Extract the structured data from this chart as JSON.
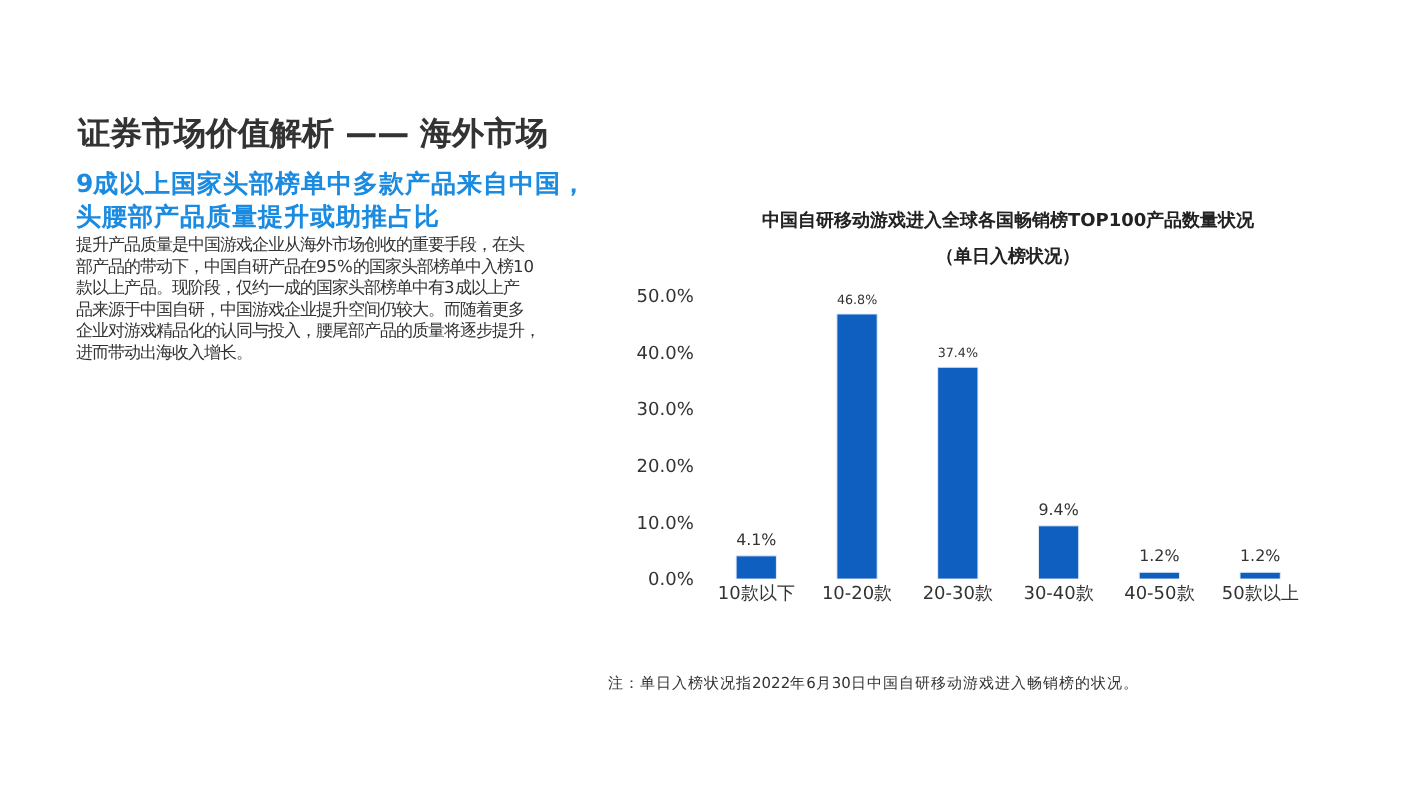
{
  "chart_data": {
    "type": "bar",
    "title": "中国自研移动游戏进入全球各国畅销榜TOP100产品数量状况",
    "subtitle": "（单日入榜状况）",
    "categories": [
      "10款以下",
      "10-20款",
      "20-30款",
      "30-40款",
      "40-50款",
      "50款以上"
    ],
    "values": [
      4.1,
      46.8,
      37.4,
      9.4,
      1.2,
      1.2
    ],
    "value_labels": [
      "4.1%",
      "46.8%",
      "37.4%",
      "9.4%",
      "1.2%",
      "1.2%"
    ],
    "color": "#0f5fc0",
    "ylim": [
      0,
      50
    ],
    "yticks": [
      {
        "value": 0,
        "label": "0.0%"
      },
      {
        "value": 10,
        "label": "10.0%"
      },
      {
        "value": 20,
        "label": "20.0%"
      },
      {
        "value": 30,
        "label": "30.0%"
      },
      {
        "value": 40,
        "label": "40.0%"
      },
      {
        "value": 50,
        "label": "50.0%"
      }
    ],
    "legend": false,
    "annotations": [
      "证券市场价值解析 —— 海外市场",
      "9成以上国家头部榜单中多款产品来自中国，头腰部产品质量提升或助推占比",
      "提升产品质量是中国游戏企业从海外市场创收的重要手段，在头部产品的带动下，中国自研产品在95%的国家头部榜单中入榜10款以上产品。现阶段，仅约一成的国家头部榜单中有3成以上产品来源于中国自研，中国游戏企业提升空间仍较大。而随着更多企业对游戏精品化的认同与投入，腰尾部产品的质量将逐步提升，进而带动出海收入增长。",
      "注：单日入榜状况指2022年6月30日中国自研移动游戏进入畅销榜的状况。"
    ]
  }
}
